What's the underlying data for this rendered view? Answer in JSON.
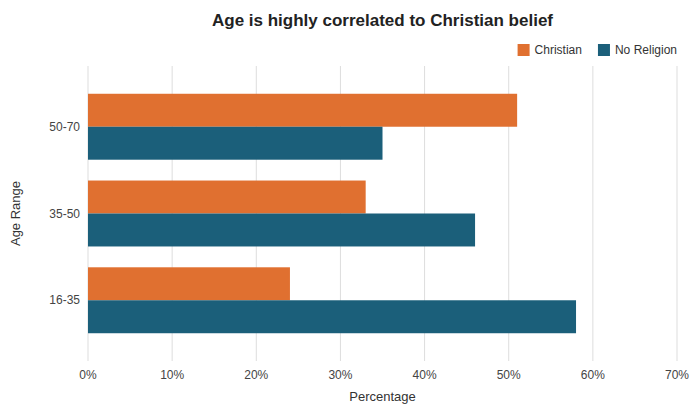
{
  "chart_data": {
    "type": "bar",
    "orientation": "horizontal",
    "title": "Age is highly correlated to Christian belief",
    "xlabel": "Percentage",
    "ylabel": "Age Range",
    "categories": [
      "16-35",
      "35-50",
      "50-70"
    ],
    "series": [
      {
        "name": "Christian",
        "color": "#E07030",
        "values": [
          0.24,
          0.33,
          0.51
        ]
      },
      {
        "name": "No Religion",
        "color": "#1B5F7A",
        "values": [
          0.58,
          0.46,
          0.35
        ]
      }
    ],
    "xlim": [
      0,
      0.7
    ],
    "xticks": [
      {
        "value": 0.0,
        "label": "0%"
      },
      {
        "value": 0.1,
        "label": "10%"
      },
      {
        "value": 0.2,
        "label": "20%"
      },
      {
        "value": 0.3,
        "label": "30%"
      },
      {
        "value": 0.4,
        "label": "40%"
      },
      {
        "value": 0.5,
        "label": "50%"
      },
      {
        "value": 0.6,
        "label": "60%"
      },
      {
        "value": 0.7,
        "label": "70%"
      }
    ],
    "grid": true,
    "legend": "upper right"
  }
}
